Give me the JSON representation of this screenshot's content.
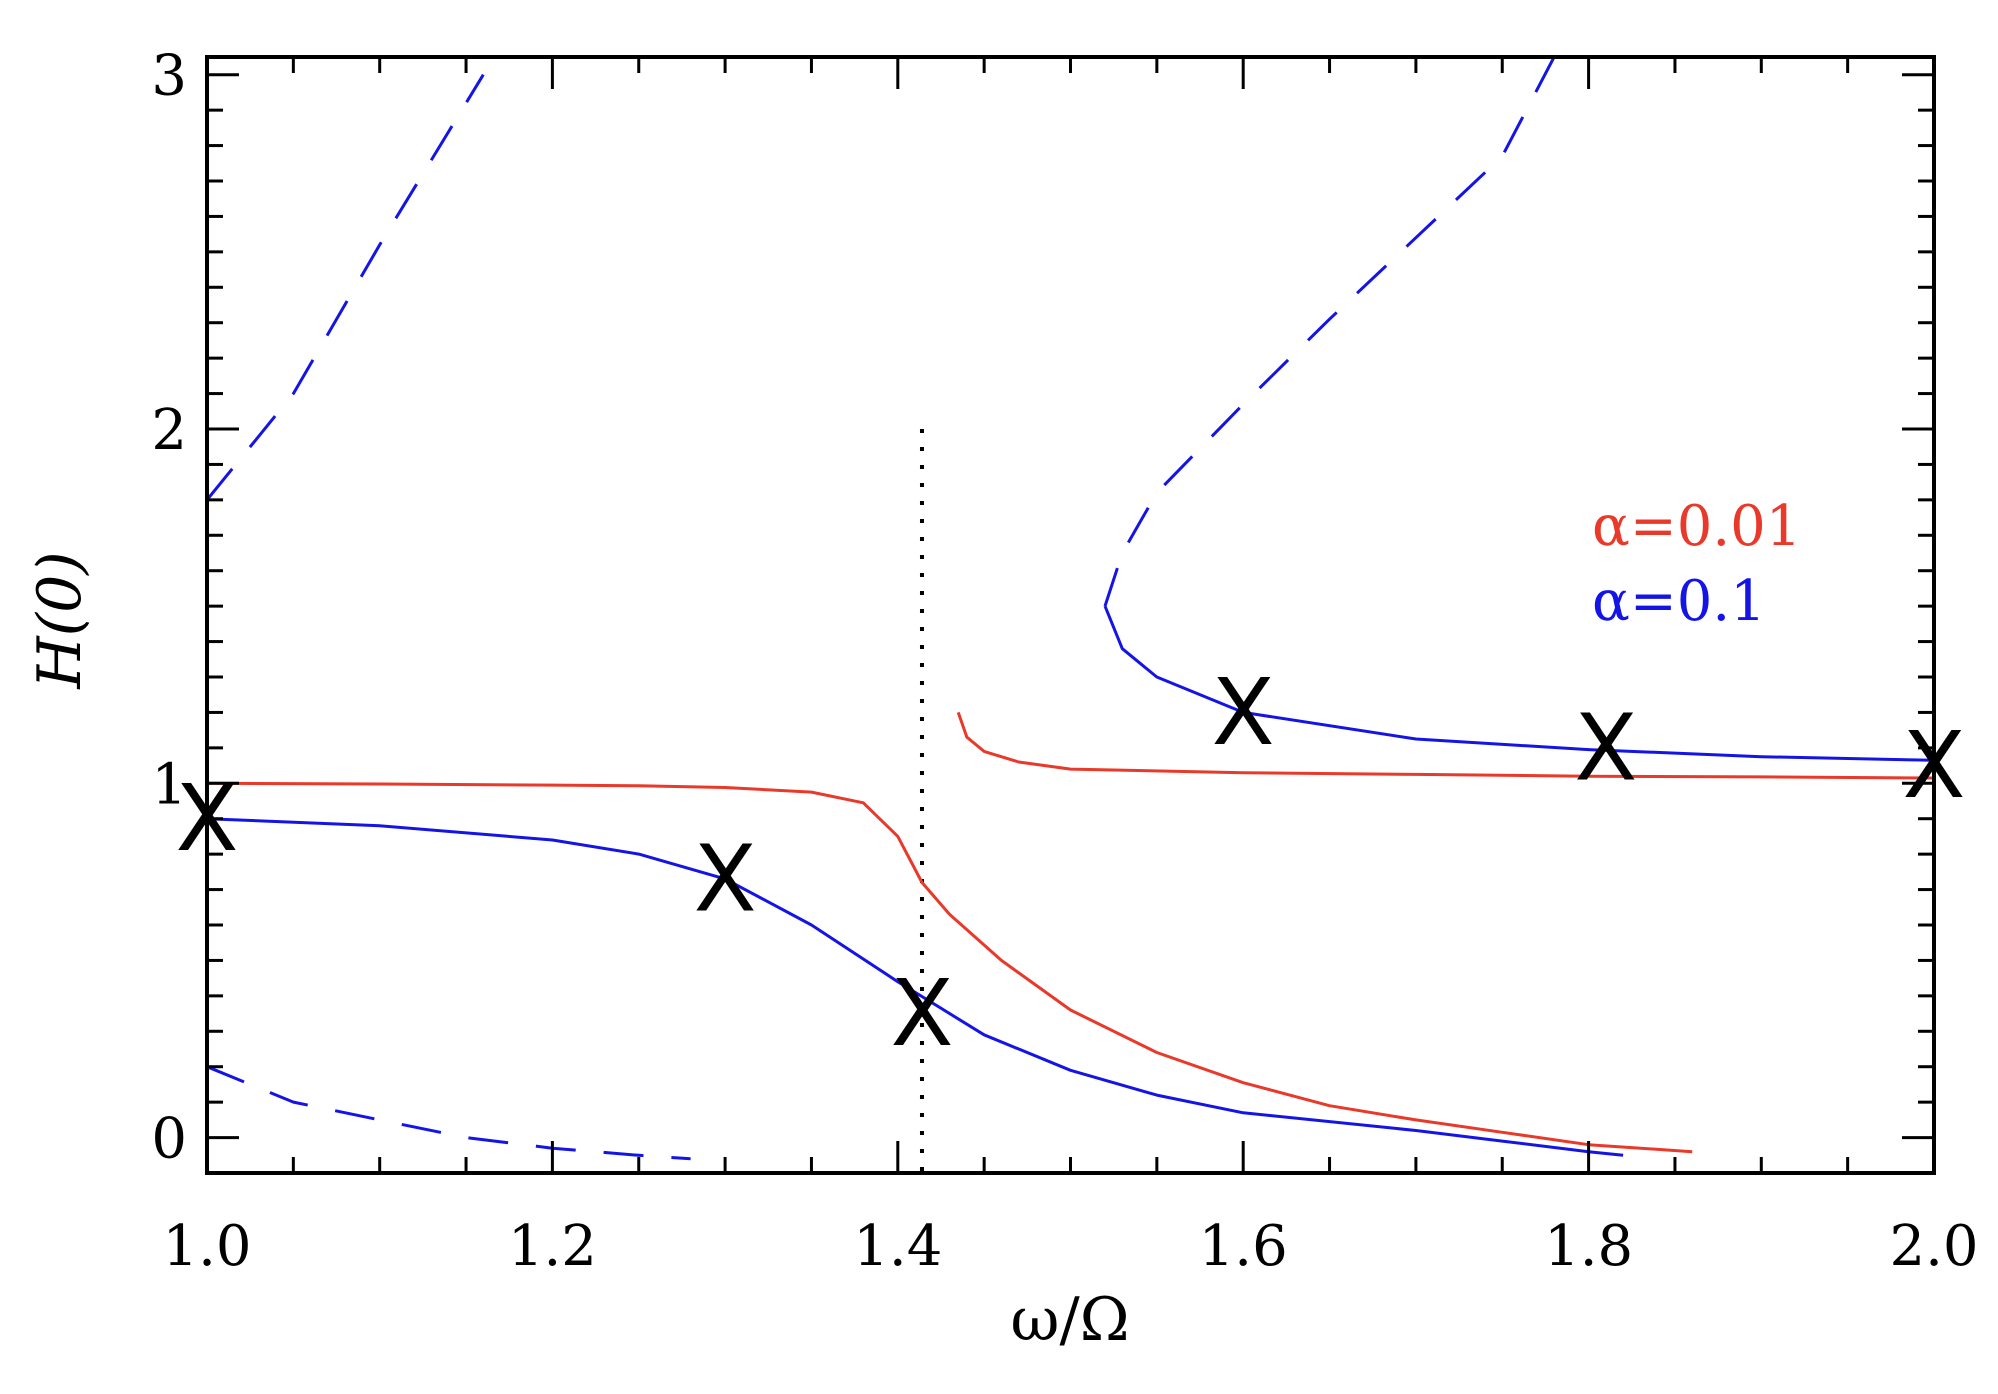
{
  "chart_data": {
    "type": "line",
    "xlabel": "ω/Ω",
    "ylabel": "H(0)",
    "xlim": [
      1.0,
      2.0
    ],
    "ylim": [
      -0.1,
      3.05
    ],
    "x_ticks": [
      1.0,
      1.2,
      1.4,
      1.6,
      1.8,
      2.0
    ],
    "x_tick_labels": [
      "1.0",
      "1.2",
      "1.4",
      "1.6",
      "1.8",
      "2.0"
    ],
    "y_ticks": [
      0,
      1,
      2,
      3
    ],
    "y_tick_labels": [
      "0",
      "1",
      "2",
      "3"
    ],
    "colors": {
      "alpha_001": "#e8392a",
      "alpha_01": "#1414e6",
      "axis": "#000000",
      "reference": "#000000"
    },
    "series": [
      {
        "name": "α=0.01 lower branch",
        "legend_group": "alpha_001",
        "style": "solid",
        "points": [
          [
            1.0,
            1.0
          ],
          [
            1.1,
            0.998
          ],
          [
            1.2,
            0.995
          ],
          [
            1.25,
            0.993
          ],
          [
            1.3,
            0.988
          ],
          [
            1.35,
            0.975
          ],
          [
            1.38,
            0.945
          ],
          [
            1.4,
            0.85
          ],
          [
            1.414,
            0.72
          ],
          [
            1.43,
            0.63
          ],
          [
            1.46,
            0.5
          ],
          [
            1.5,
            0.36
          ],
          [
            1.55,
            0.24
          ],
          [
            1.6,
            0.155
          ],
          [
            1.65,
            0.09
          ],
          [
            1.7,
            0.05
          ],
          [
            1.75,
            0.015
          ],
          [
            1.8,
            -0.02
          ],
          [
            1.86,
            -0.04
          ]
        ]
      },
      {
        "name": "α=0.01 upper branch",
        "legend_group": "alpha_001",
        "style": "solid",
        "points": [
          [
            1.435,
            1.2
          ],
          [
            1.44,
            1.13
          ],
          [
            1.45,
            1.09
          ],
          [
            1.47,
            1.06
          ],
          [
            1.5,
            1.04
          ],
          [
            1.6,
            1.03
          ],
          [
            1.7,
            1.025
          ],
          [
            1.8,
            1.02
          ],
          [
            1.9,
            1.018
          ],
          [
            2.0,
            1.015
          ]
        ]
      },
      {
        "name": "α=0.1 stable lower branch",
        "legend_group": "alpha_01",
        "style": "solid",
        "points": [
          [
            1.0,
            0.9
          ],
          [
            1.1,
            0.88
          ],
          [
            1.2,
            0.84
          ],
          [
            1.25,
            0.8
          ],
          [
            1.3,
            0.73
          ],
          [
            1.35,
            0.6
          ],
          [
            1.4,
            0.44
          ],
          [
            1.42,
            0.38
          ],
          [
            1.45,
            0.29
          ],
          [
            1.5,
            0.19
          ],
          [
            1.55,
            0.12
          ],
          [
            1.6,
            0.07
          ],
          [
            1.7,
            0.02
          ],
          [
            1.75,
            -0.01
          ],
          [
            1.8,
            -0.04
          ],
          [
            1.82,
            -0.05
          ]
        ]
      },
      {
        "name": "α=0.1 stable upper branch",
        "legend_group": "alpha_01",
        "style": "solid",
        "points": [
          [
            1.52,
            1.5
          ],
          [
            1.53,
            1.38
          ],
          [
            1.55,
            1.3
          ],
          [
            1.6,
            1.2
          ],
          [
            1.7,
            1.125
          ],
          [
            1.8,
            1.095
          ],
          [
            1.9,
            1.075
          ],
          [
            2.0,
            1.065
          ]
        ]
      },
      {
        "name": "α=0.1 unstable upper branch",
        "legend_group": "alpha_01",
        "style": "dashed",
        "points": [
          [
            1.52,
            1.5
          ],
          [
            1.53,
            1.65
          ],
          [
            1.55,
            1.82
          ],
          [
            1.6,
            2.07
          ],
          [
            1.65,
            2.31
          ],
          [
            1.7,
            2.54
          ],
          [
            1.75,
            2.77
          ],
          [
            1.78,
            3.05
          ]
        ]
      },
      {
        "name": "α=0.1 unstable left branch",
        "legend_group": "alpha_01",
        "style": "dashed",
        "points": [
          [
            1.0,
            1.8
          ],
          [
            1.05,
            2.1
          ],
          [
            1.1,
            2.52
          ],
          [
            1.16,
            3.0
          ]
        ]
      },
      {
        "name": "α=0.1 unstable lower branch",
        "legend_group": "alpha_01",
        "style": "dashed",
        "points": [
          [
            1.0,
            0.2
          ],
          [
            1.05,
            0.1
          ],
          [
            1.1,
            0.05
          ],
          [
            1.15,
            0.0
          ],
          [
            1.2,
            -0.03
          ],
          [
            1.25,
            -0.05
          ],
          [
            1.28,
            -0.06
          ]
        ]
      }
    ],
    "reference_line": {
      "x": 1.414,
      "y_range": [
        -0.1,
        2.0
      ],
      "style": "dotted"
    },
    "markers": {
      "symbol": "X",
      "points": [
        [
          1.0,
          0.9
        ],
        [
          1.3,
          0.73
        ],
        [
          1.414,
          0.35
        ],
        [
          1.6,
          1.2
        ],
        [
          1.81,
          1.1
        ],
        [
          2.0,
          1.05
        ]
      ]
    },
    "legend": {
      "placement": "right",
      "entries": [
        {
          "label": "α=0.01",
          "color_key": "alpha_001"
        },
        {
          "label": "α=0.1",
          "color_key": "alpha_01"
        }
      ]
    }
  }
}
